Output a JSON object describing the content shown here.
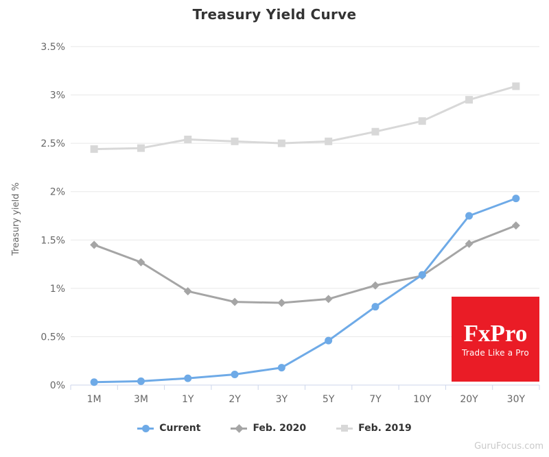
{
  "title": "Treasury Yield Curve",
  "watermark": "GuruFocus.com",
  "logo": {
    "brand": "FxPro",
    "tagline": "Trade Like a Pro",
    "bg_color": "#ea1c26",
    "text_color": "#ffffff"
  },
  "colors": {
    "grid": "#e7e7e7",
    "axis": "#ccd6eb",
    "tick_label": "#666666",
    "title": "#333333",
    "legend_text": "#333333",
    "watermark": "#c9c9c9"
  },
  "chart_data": {
    "type": "line",
    "title": "Treasury Yield Curve",
    "xlabel": "",
    "ylabel": "Treasury yield %",
    "categories": [
      "1M",
      "3M",
      "1Y",
      "2Y",
      "3Y",
      "5Y",
      "7Y",
      "10Y",
      "20Y",
      "30Y"
    ],
    "series": [
      {
        "name": "Current",
        "marker": "circle",
        "color": "#6eaae7",
        "values": [
          0.03,
          0.04,
          0.07,
          0.11,
          0.18,
          0.46,
          0.81,
          1.14,
          1.75,
          1.93
        ]
      },
      {
        "name": "Feb. 2020",
        "marker": "diamond",
        "color": "#a5a5a5",
        "values": [
          1.45,
          1.27,
          0.97,
          0.86,
          0.85,
          0.89,
          1.03,
          1.13,
          1.46,
          1.65
        ]
      },
      {
        "name": "Feb. 2019",
        "marker": "square",
        "color": "#d8d8d8",
        "values": [
          2.44,
          2.45,
          2.54,
          2.52,
          2.5,
          2.52,
          2.62,
          2.73,
          2.95,
          3.09
        ]
      }
    ],
    "ylim": [
      0,
      3.5
    ],
    "ytick_step": 0.5,
    "ytick_labels": [
      "0%",
      "0.5%",
      "1%",
      "1.5%",
      "2%",
      "2.5%",
      "3%",
      "3.5%"
    ],
    "grid": true,
    "legend_position": "bottom"
  }
}
